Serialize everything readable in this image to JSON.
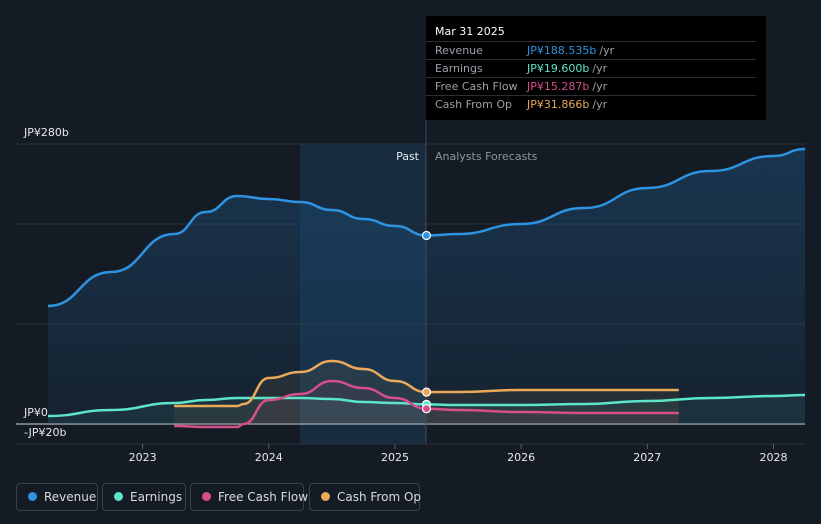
{
  "chart_data": {
    "type": "line",
    "y_axis": {
      "min": -20,
      "max": 280,
      "top_label": "JP¥280b",
      "zero_label": "JP¥0",
      "bottom_label": "-JP¥20b",
      "gridlines": [
        280,
        200,
        100,
        0
      ]
    },
    "x_axis": {
      "min": 2022.25,
      "max": 2028.25,
      "ticks": [
        "2023",
        "2024",
        "2025",
        "2026",
        "2027",
        "2028"
      ]
    },
    "divider_x": 2025.25,
    "past_label": "Past",
    "forecast_label": "Analysts Forecasts",
    "series": [
      {
        "name": "Revenue",
        "color": "#2d93e0",
        "points": [
          [
            2022.25,
            118
          ],
          [
            2022.75,
            152
          ],
          [
            2023.25,
            190
          ],
          [
            2023.5,
            212
          ],
          [
            2023.75,
            228
          ],
          [
            2024,
            225
          ],
          [
            2024.25,
            222
          ],
          [
            2024.5,
            214
          ],
          [
            2024.75,
            205
          ],
          [
            2025,
            198
          ],
          [
            2025.25,
            188.5
          ],
          [
            2025.5,
            190
          ],
          [
            2026,
            200
          ],
          [
            2026.5,
            216
          ],
          [
            2027,
            236
          ],
          [
            2027.5,
            253
          ],
          [
            2028,
            268
          ],
          [
            2028.25,
            275
          ]
        ]
      },
      {
        "name": "Earnings",
        "color": "#5ce5c9",
        "points": [
          [
            2022.25,
            8
          ],
          [
            2022.75,
            14
          ],
          [
            2023.25,
            21
          ],
          [
            2023.5,
            24
          ],
          [
            2023.75,
            26
          ],
          [
            2024,
            26
          ],
          [
            2024.25,
            26
          ],
          [
            2024.5,
            25
          ],
          [
            2024.75,
            22
          ],
          [
            2025,
            21
          ],
          [
            2025.25,
            19.6
          ],
          [
            2025.5,
            19
          ],
          [
            2026,
            19
          ],
          [
            2026.5,
            20
          ],
          [
            2027,
            23
          ],
          [
            2027.5,
            26
          ],
          [
            2028,
            28
          ],
          [
            2028.25,
            29
          ]
        ]
      },
      {
        "name": "Free Cash Flow",
        "color": "#d64f8a",
        "points": [
          [
            2023.25,
            -2
          ],
          [
            2023.5,
            -3
          ],
          [
            2023.75,
            -3
          ],
          [
            2023.8,
            0
          ],
          [
            2024,
            24
          ],
          [
            2024.25,
            30
          ],
          [
            2024.5,
            43
          ],
          [
            2024.75,
            36
          ],
          [
            2025,
            26
          ],
          [
            2025.25,
            15.3
          ],
          [
            2025.5,
            14
          ],
          [
            2026,
            12
          ],
          [
            2026.5,
            11
          ],
          [
            2027,
            11
          ],
          [
            2027.25,
            11
          ]
        ]
      },
      {
        "name": "Cash From Op",
        "color": "#e9a95a",
        "points": [
          [
            2023.25,
            18
          ],
          [
            2023.5,
            18
          ],
          [
            2023.75,
            18
          ],
          [
            2023.8,
            20
          ],
          [
            2024,
            46
          ],
          [
            2024.25,
            52
          ],
          [
            2024.5,
            63
          ],
          [
            2024.75,
            55
          ],
          [
            2025,
            43
          ],
          [
            2025.25,
            31.9
          ],
          [
            2025.5,
            32
          ],
          [
            2026,
            34
          ],
          [
            2026.5,
            34
          ],
          [
            2027,
            34
          ],
          [
            2027.25,
            34
          ]
        ]
      }
    ],
    "legend": [
      "Revenue",
      "Earnings",
      "Free Cash Flow",
      "Cash From Op"
    ]
  },
  "tooltip": {
    "date": "Mar 31 2025",
    "rows": [
      {
        "label": "Revenue",
        "value": "JP¥188.535b",
        "unit": "/yr",
        "color": "#2d93e0"
      },
      {
        "label": "Earnings",
        "value": "JP¥19.600b",
        "unit": "/yr",
        "color": "#5ce5c9"
      },
      {
        "label": "Free Cash Flow",
        "value": "JP¥15.287b",
        "unit": "/yr",
        "color": "#d64f8a"
      },
      {
        "label": "Cash From Op",
        "value": "JP¥31.866b",
        "unit": "/yr",
        "color": "#e9a95a"
      }
    ]
  }
}
